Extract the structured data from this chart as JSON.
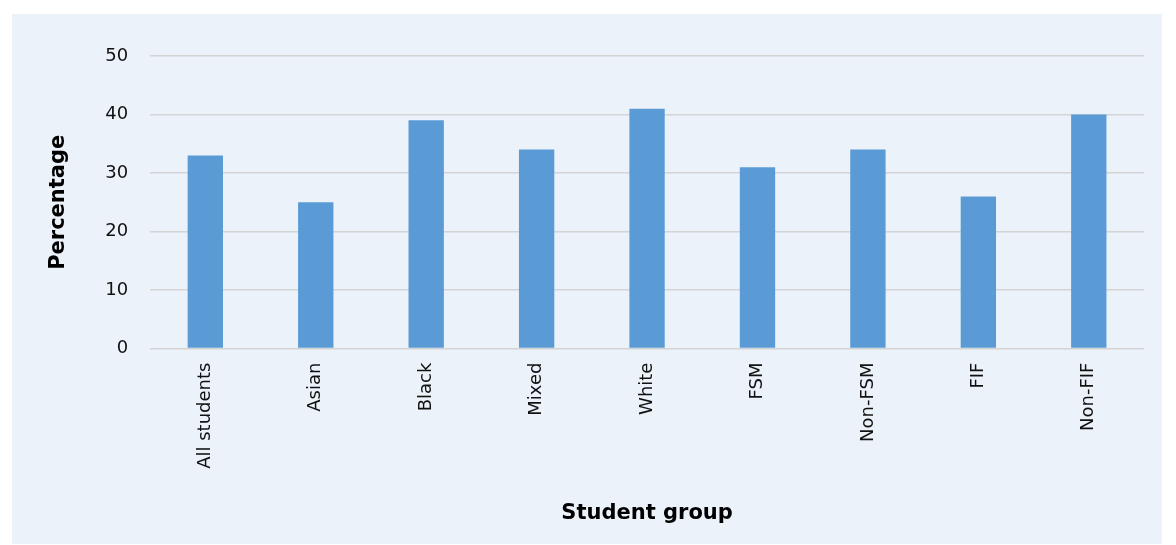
{
  "chart_data": {
    "type": "bar",
    "xlabel": "Student group",
    "ylabel": "Percentage",
    "categories": [
      "All students",
      "Asian",
      "Black",
      "Mixed",
      "White",
      "FSM",
      "Non-FSM",
      "FIF",
      "Non-FIF"
    ],
    "values": [
      33,
      25,
      39,
      34,
      41,
      31,
      34,
      26,
      40
    ],
    "color": "#5b9bd5",
    "ylim": [
      0,
      50
    ],
    "yticks": [
      0,
      10,
      20,
      30,
      40,
      50
    ],
    "grid": "y",
    "legend": false
  }
}
